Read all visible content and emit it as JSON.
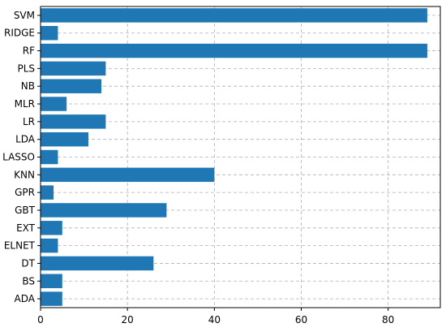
{
  "chart_data": {
    "type": "bar",
    "orientation": "horizontal",
    "categories": [
      "SVM",
      "RIDGE",
      "RF",
      "PLS",
      "NB",
      "MLR",
      "LR",
      "LDA",
      "LASSO",
      "KNN",
      "GPR",
      "GBT",
      "EXT",
      "ELNET",
      "DT",
      "BS",
      "ADA"
    ],
    "values": [
      89,
      4,
      89,
      15,
      14,
      6,
      15,
      11,
      4,
      40,
      3,
      29,
      5,
      4,
      26,
      5,
      5
    ],
    "xlim": [
      0,
      92
    ],
    "xticks": [
      0,
      20,
      40,
      60,
      80
    ],
    "grid": true,
    "bar_color": "#1f77b4",
    "title": "",
    "xlabel": "",
    "ylabel": ""
  }
}
